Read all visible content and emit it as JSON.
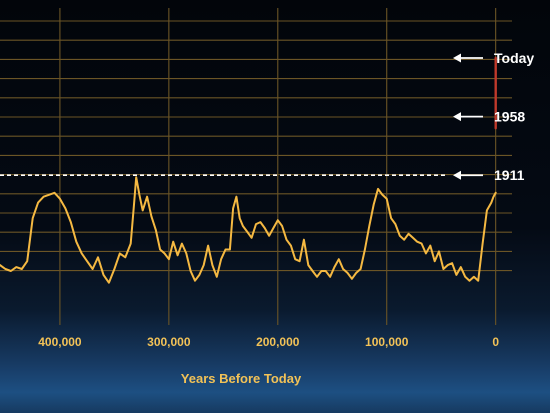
{
  "chart_data": {
    "type": "line",
    "xlabel": "Years Before Today",
    "ylabel": "",
    "title": "",
    "x_reversed": true,
    "xlim": [
      455000,
      -15000
    ],
    "ylim": [
      0,
      13
    ],
    "grid": true,
    "x_ticks": [
      {
        "value": 400000,
        "label": "400,000"
      },
      {
        "value": 300000,
        "label": "300,000"
      },
      {
        "value": 200000,
        "label": "200,000"
      },
      {
        "value": 100000,
        "label": "100,000"
      },
      {
        "value": 0,
        "label": "0"
      }
    ],
    "gridline_x_values": [
      400000,
      300000,
      200000,
      100000,
      0
    ],
    "gridline_count_y": 13,
    "series": [
      {
        "color": "#f5b942",
        "x": [
          455000,
          450000,
          445000,
          440000,
          435000,
          430000,
          425000,
          420000,
          415000,
          410000,
          405000,
          400000,
          395000,
          390000,
          385000,
          380000,
          375000,
          370000,
          365000,
          360000,
          355000,
          350000,
          345000,
          340000,
          335000,
          332000,
          330000,
          327000,
          324000,
          320000,
          316000,
          312000,
          308000,
          304000,
          300000,
          296000,
          292000,
          288000,
          284000,
          280000,
          276000,
          272000,
          268000,
          264000,
          260000,
          256000,
          252000,
          248000,
          244000,
          241000,
          238000,
          235000,
          232000,
          228000,
          224000,
          220000,
          216000,
          212000,
          208000,
          204000,
          200000,
          196000,
          192000,
          188000,
          184000,
          180000,
          176000,
          172000,
          168000,
          164000,
          160000,
          156000,
          152000,
          148000,
          144000,
          140000,
          136000,
          132000,
          128000,
          124000,
          120000,
          116000,
          112000,
          108000,
          104000,
          100000,
          96000,
          92000,
          88000,
          84000,
          80000,
          76000,
          72000,
          68000,
          64000,
          60000,
          56000,
          52000,
          48000,
          44000,
          40000,
          36000,
          32000,
          28000,
          24000,
          20000,
          16000,
          12000,
          8000,
          4000,
          2000,
          0
        ],
        "y": [
          2.4,
          2.2,
          2.1,
          2.3,
          2.2,
          2.6,
          4.8,
          5.6,
          5.9,
          6.0,
          6.1,
          5.8,
          5.3,
          4.6,
          3.6,
          3.0,
          2.6,
          2.2,
          2.8,
          1.9,
          1.5,
          2.2,
          3.0,
          2.8,
          3.5,
          5.5,
          6.9,
          6.0,
          5.2,
          5.9,
          4.9,
          4.2,
          3.2,
          3.0,
          2.7,
          3.6,
          2.9,
          3.5,
          3.0,
          2.1,
          1.6,
          1.9,
          2.4,
          3.4,
          2.4,
          1.8,
          2.7,
          3.2,
          3.2,
          5.3,
          5.9,
          4.8,
          4.4,
          4.1,
          3.8,
          4.5,
          4.6,
          4.3,
          3.9,
          4.3,
          4.7,
          4.4,
          3.7,
          3.4,
          2.7,
          2.6,
          3.7,
          2.4,
          2.1,
          1.8,
          2.1,
          2.1,
          1.8,
          2.3,
          2.7,
          2.2,
          2.0,
          1.7,
          2.0,
          2.2,
          3.2,
          4.4,
          5.5,
          6.3,
          6.0,
          5.8,
          4.8,
          4.5,
          3.9,
          3.7,
          4.0,
          3.8,
          3.6,
          3.5,
          3.0,
          3.4,
          2.6,
          3.1,
          2.2,
          2.4,
          2.5,
          1.9,
          2.3,
          1.8,
          1.6,
          1.8,
          1.6,
          3.5,
          5.2,
          5.6,
          5.9,
          6.1
        ]
      },
      {
        "color": "#c0392b",
        "x": [
          0,
          0
        ],
        "y": [
          9.4,
          13.0
        ]
      }
    ],
    "reference_lines": [
      {
        "y": 7.0,
        "style": "dashed",
        "color": "#ffffff"
      }
    ],
    "annotations": [
      {
        "label": "Today",
        "y": 13.0
      },
      {
        "label": "1958",
        "y": 10.0
      },
      {
        "label": "1911",
        "y": 7.0
      }
    ]
  }
}
